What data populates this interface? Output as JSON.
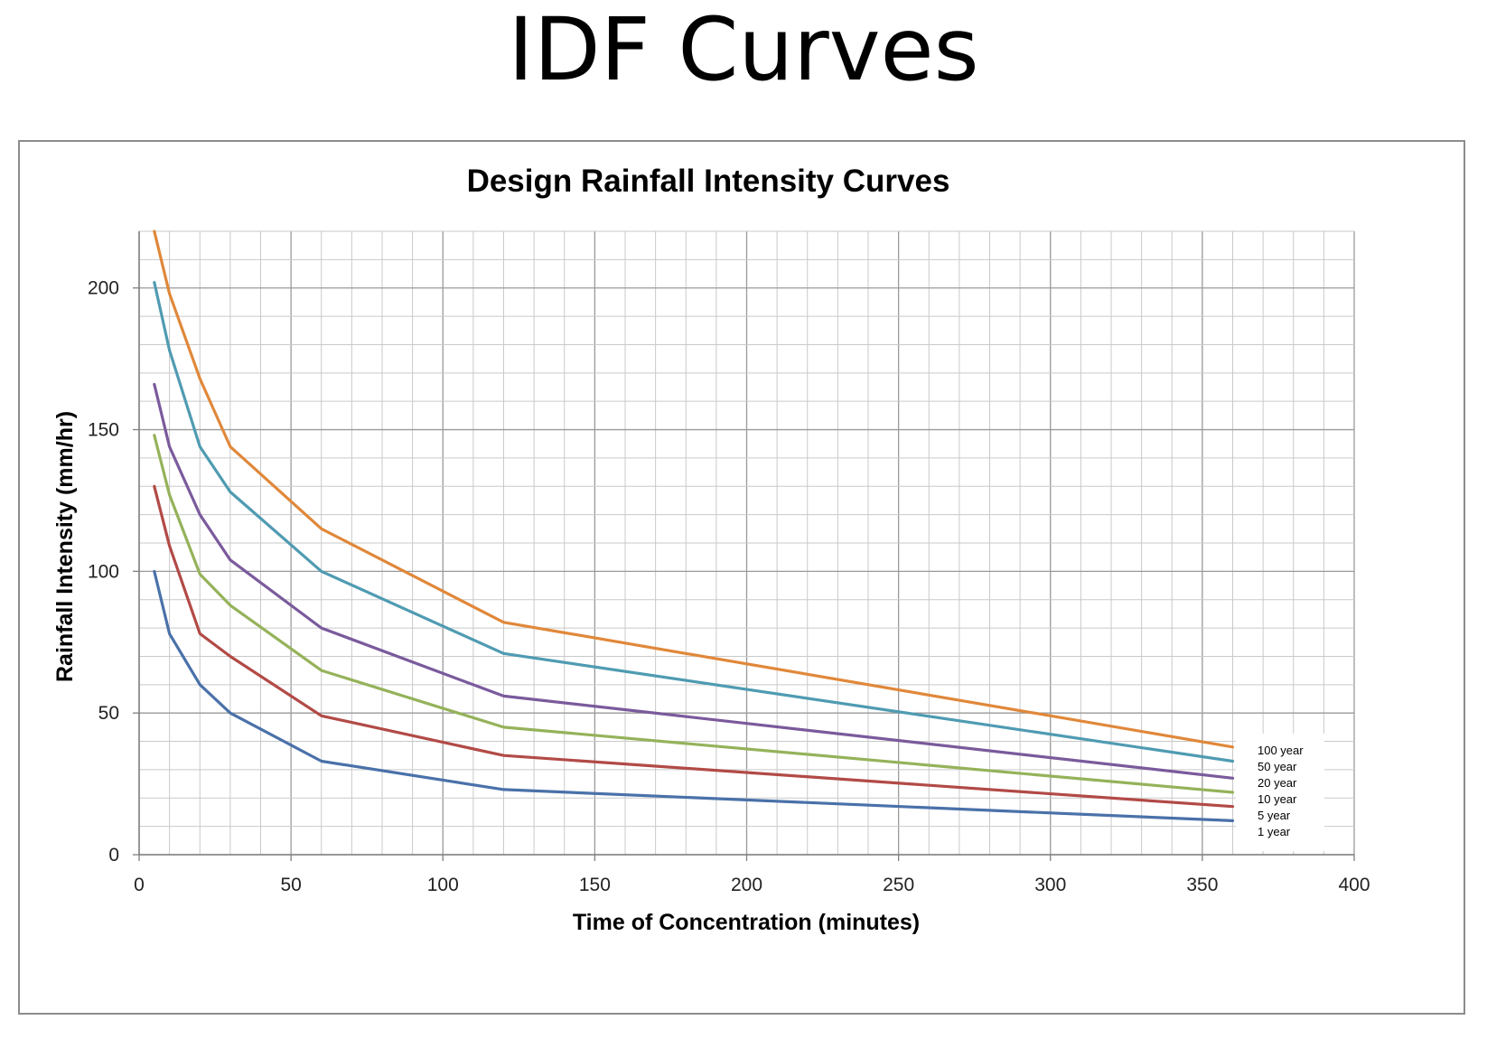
{
  "slide": {
    "title": "IDF Curves"
  },
  "chart_data": {
    "type": "line",
    "title": "Design Rainfall Intensity Curves",
    "xlabel": "Time of Concentration (minutes)",
    "ylabel": "Rainfall Intensity (mm/hr)",
    "xlim": [
      0,
      400
    ],
    "ylim": [
      0,
      220
    ],
    "x_ticks": [
      0,
      50,
      100,
      150,
      200,
      250,
      300,
      350,
      400
    ],
    "y_ticks": [
      0,
      50,
      100,
      150,
      200
    ],
    "x_minor_step": 10,
    "y_minor_step": 10,
    "grid": true,
    "legend_position": "right",
    "x": [
      5,
      10,
      20,
      30,
      60,
      120,
      360
    ],
    "series": [
      {
        "name": "100 year",
        "color": "#e0883a",
        "values": [
          220,
          198,
          168,
          144,
          115,
          82,
          38
        ]
      },
      {
        "name": "50 year",
        "color": "#4f9bb2",
        "values": [
          202,
          178,
          144,
          128,
          100,
          71,
          33
        ]
      },
      {
        "name": "20 year",
        "color": "#7a5a9c",
        "values": [
          166,
          144,
          120,
          104,
          80,
          56,
          27
        ]
      },
      {
        "name": "10 year",
        "color": "#95b25a",
        "values": [
          148,
          127,
          99,
          88,
          65,
          45,
          22
        ]
      },
      {
        "name": "5 year",
        "color": "#b24a46",
        "values": [
          130,
          109,
          78,
          70,
          49,
          35,
          17
        ]
      },
      {
        "name": "1 year",
        "color": "#4a71a9",
        "values": [
          100,
          78,
          60,
          50,
          33,
          23,
          12
        ]
      }
    ]
  }
}
